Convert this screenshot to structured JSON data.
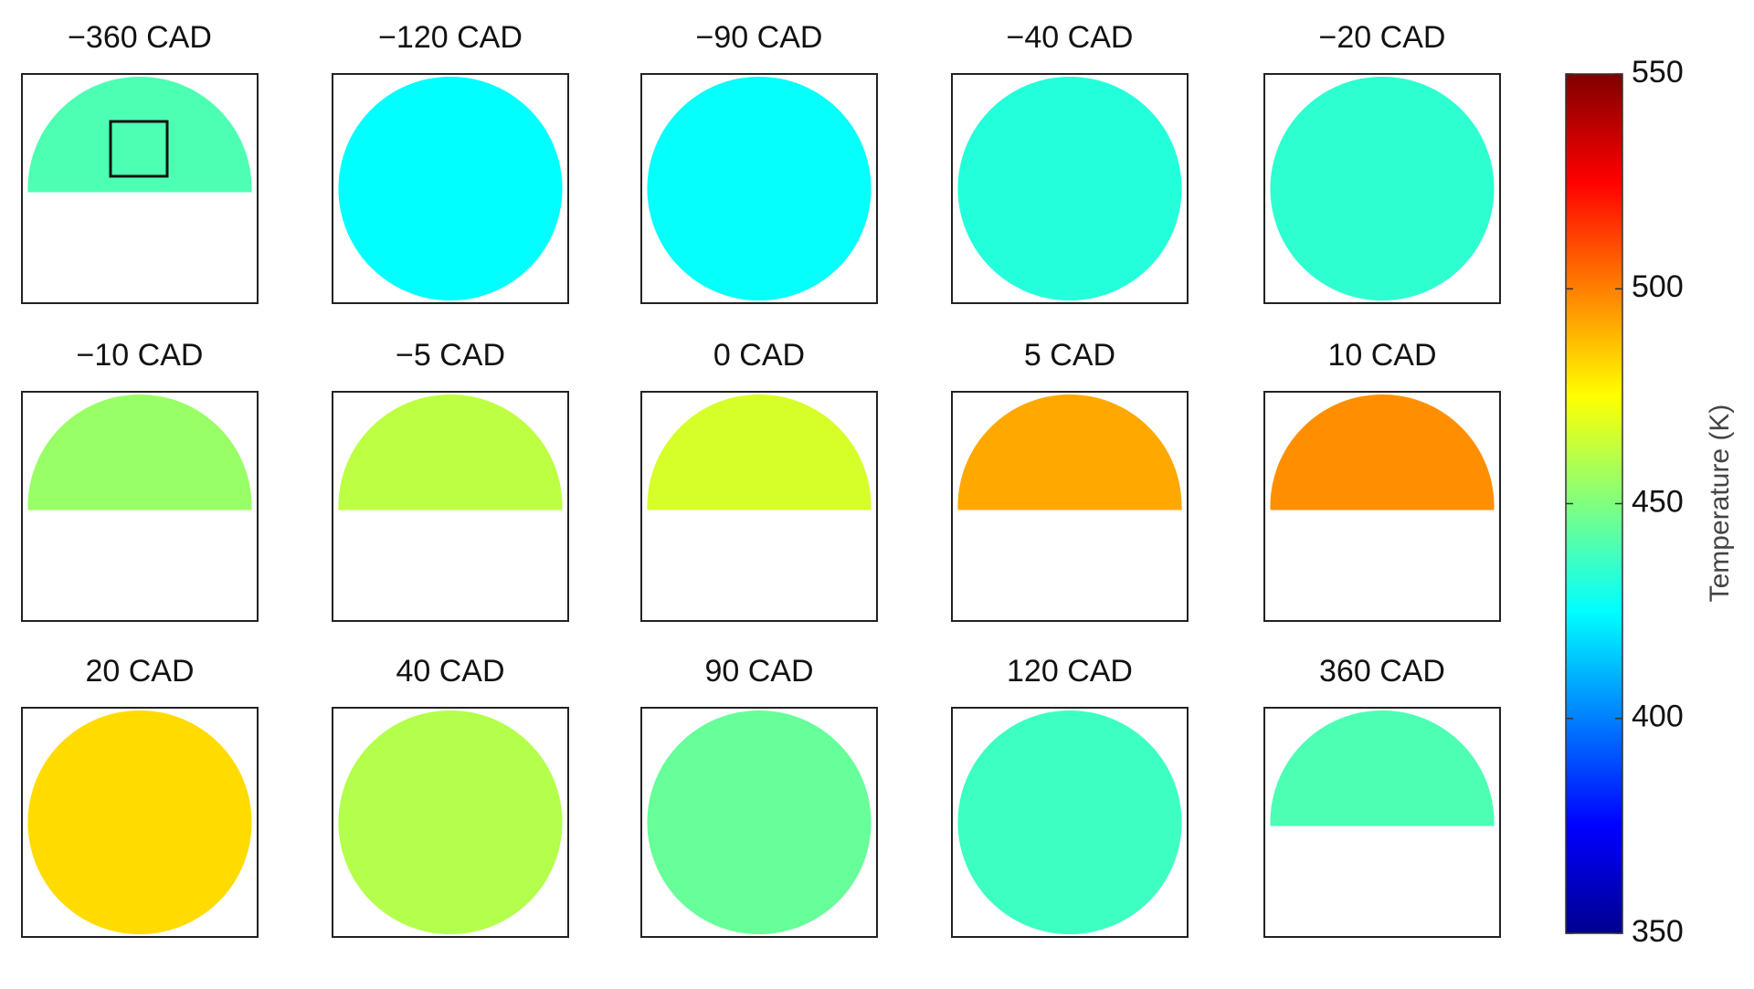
{
  "chart_data": {
    "type": "map-grid",
    "panels": [
      {
        "title": "−360 CAD",
        "mean": 440,
        "shape": "half",
        "roi": true
      },
      {
        "title": "−120 CAD",
        "mean": 425,
        "shape": "full"
      },
      {
        "title": "−90 CAD",
        "mean": 426,
        "shape": "full"
      },
      {
        "title": "−40 CAD",
        "mean": 432,
        "shape": "full"
      },
      {
        "title": "−20 CAD",
        "mean": 434,
        "shape": "full"
      },
      {
        "title": "−10 CAD",
        "mean": 455,
        "shape": "half"
      },
      {
        "title": "−5 CAD",
        "mean": 462,
        "shape": "half"
      },
      {
        "title": "0 CAD",
        "mean": 467,
        "shape": "half"
      },
      {
        "title": "5 CAD",
        "mean": 492,
        "shape": "half"
      },
      {
        "title": "10 CAD",
        "mean": 497,
        "shape": "half"
      },
      {
        "title": "20 CAD",
        "mean": 482,
        "shape": "full"
      },
      {
        "title": "40 CAD",
        "mean": 460,
        "shape": "full"
      },
      {
        "title": "90 CAD",
        "mean": 445,
        "shape": "full"
      },
      {
        "title": "120 CAD",
        "mean": 437,
        "shape": "full"
      },
      {
        "title": "360 CAD",
        "mean": 440,
        "shape": "half"
      }
    ],
    "columns": 5,
    "colorbar": {
      "label": "Temperature (K)",
      "lim": [
        350,
        550
      ],
      "ticks": [
        350,
        400,
        450,
        500,
        550
      ],
      "colormap": "jet"
    }
  }
}
